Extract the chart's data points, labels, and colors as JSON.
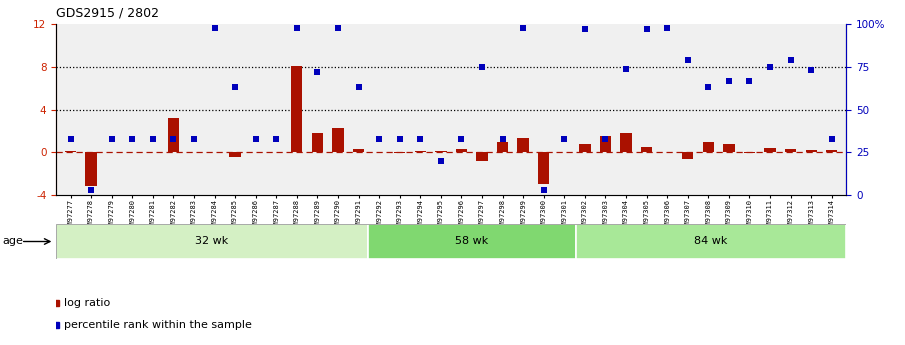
{
  "title": "GDS2915 / 2802",
  "samples": [
    "GSM97277",
    "GSM97278",
    "GSM97279",
    "GSM97280",
    "GSM97281",
    "GSM97282",
    "GSM97283",
    "GSM97284",
    "GSM97285",
    "GSM97286",
    "GSM97287",
    "GSM97288",
    "GSM97289",
    "GSM97290",
    "GSM97291",
    "GSM97292",
    "GSM97293",
    "GSM97294",
    "GSM97295",
    "GSM97296",
    "GSM97297",
    "GSM97298",
    "GSM97299",
    "GSM97300",
    "GSM97301",
    "GSM97302",
    "GSM97303",
    "GSM97304",
    "GSM97305",
    "GSM97306",
    "GSM97307",
    "GSM97308",
    "GSM97309",
    "GSM97310",
    "GSM97311",
    "GSM97312",
    "GSM97313",
    "GSM97314"
  ],
  "log_ratio": [
    0.1,
    -3.2,
    0.05,
    0.05,
    0.05,
    3.2,
    0.05,
    0.05,
    -0.4,
    0.05,
    0.05,
    8.1,
    1.8,
    2.3,
    0.3,
    0.05,
    -0.1,
    0.1,
    0.1,
    0.3,
    -0.8,
    1.0,
    1.3,
    -3.0,
    0.05,
    0.8,
    1.5,
    1.8,
    0.5,
    0.05,
    -0.6,
    1.0,
    0.8,
    -0.1,
    0.4,
    0.3,
    0.2,
    0.2
  ],
  "percentile_pct": [
    33,
    3,
    33,
    33,
    33,
    33,
    33,
    98,
    63,
    33,
    33,
    98,
    72,
    98,
    63,
    33,
    33,
    33,
    20,
    33,
    75,
    33,
    98,
    3,
    33,
    97,
    33,
    74,
    97,
    98,
    79,
    63,
    67,
    67,
    75,
    79,
    73,
    33
  ],
  "groups": [
    {
      "label": "32 wk",
      "start": 0,
      "end": 15,
      "color": "#d4f0c4"
    },
    {
      "label": "58 wk",
      "start": 15,
      "end": 25,
      "color": "#80d870"
    },
    {
      "label": "84 wk",
      "start": 25,
      "end": 38,
      "color": "#a8e898"
    }
  ],
  "age_label": "age",
  "ylim_left": [
    -4,
    12
  ],
  "ylim_right": [
    0,
    100
  ],
  "yticks_left": [
    -4,
    0,
    4,
    8,
    12
  ],
  "yticks_right": [
    0,
    25,
    50,
    75,
    100
  ],
  "bar_color": "#aa1100",
  "dot_color": "#0000bb",
  "bg_color": "#ffffff",
  "legend_bar_label": "log ratio",
  "legend_dot_label": "percentile rank within the sample"
}
